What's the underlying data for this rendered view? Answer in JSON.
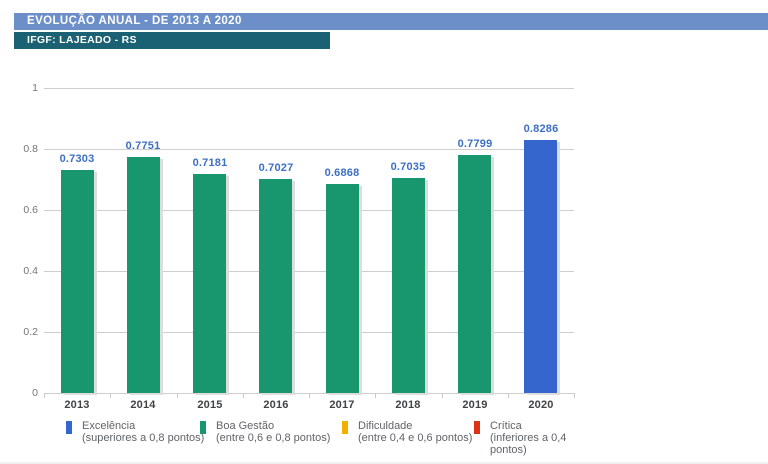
{
  "header": {
    "title": "EVOLUÇÃO ANUAL - DE 2013 A 2020",
    "subtitle": "IFGF: LAJEADO - RS"
  },
  "colors": {
    "title_bar_bg": "#6C8EC9",
    "subtitle_bar_bg": "#1A6173",
    "excellent_blue": "#3566CD",
    "good_green": "#18976E",
    "difficulty_yellow": "#F0B000",
    "critical_red": "#DA3317",
    "value_label_blue": "#3D6FC3",
    "gridline_gray": "#CECECE"
  },
  "chart_data": {
    "type": "bar",
    "title": "EVOLUÇÃO ANUAL - DE 2013 A 2020",
    "subtitle": "IFGF: LAJEADO - RS",
    "xlabel": "",
    "ylabel": "",
    "ylim": [
      0,
      1
    ],
    "grid": true,
    "legend_position": "bottom",
    "categories": [
      "2013",
      "2014",
      "2015",
      "2016",
      "2017",
      "2018",
      "2019",
      "2020"
    ],
    "values": [
      0.7303,
      0.7751,
      0.7181,
      0.7027,
      0.6868,
      0.7035,
      0.7799,
      0.8286
    ],
    "value_labels": [
      "0.7303",
      "0.7751",
      "0.7181",
      "0.7027",
      "0.6868",
      "0.7035",
      "0.7799",
      "0.8286"
    ],
    "bar_colors": [
      "#18976E",
      "#18976E",
      "#18976E",
      "#18976E",
      "#18976E",
      "#18976E",
      "#18976E",
      "#3566CD"
    ],
    "y_ticks": [
      {
        "label": "1",
        "value": 1
      },
      {
        "label": "0.8",
        "value": 0.8
      },
      {
        "label": "0.6",
        "value": 0.6
      },
      {
        "label": "0.4",
        "value": 0.4
      },
      {
        "label": "0.2",
        "value": 0.2
      },
      {
        "label": "0",
        "value": 0
      }
    ],
    "legend": [
      {
        "label": "Excelência",
        "color": "#3566CD",
        "lines": [
          "Excelência",
          "(superiores a 0,8 pontos)"
        ]
      },
      {
        "label": "Boa Gestão",
        "color": "#18976E",
        "lines": [
          "Boa Gestão",
          "(entre 0,6 e 0,8 pontos)"
        ]
      },
      {
        "label": "Dificuldade",
        "color": "#F0B000",
        "lines": [
          "Dificuldade",
          "(entre 0,4 e 0,6 pontos)"
        ]
      },
      {
        "label": "Crítica",
        "color": "#DA3317",
        "lines": [
          "Crítica",
          "(inferiores a 0,4",
          "pontos)"
        ]
      }
    ]
  }
}
